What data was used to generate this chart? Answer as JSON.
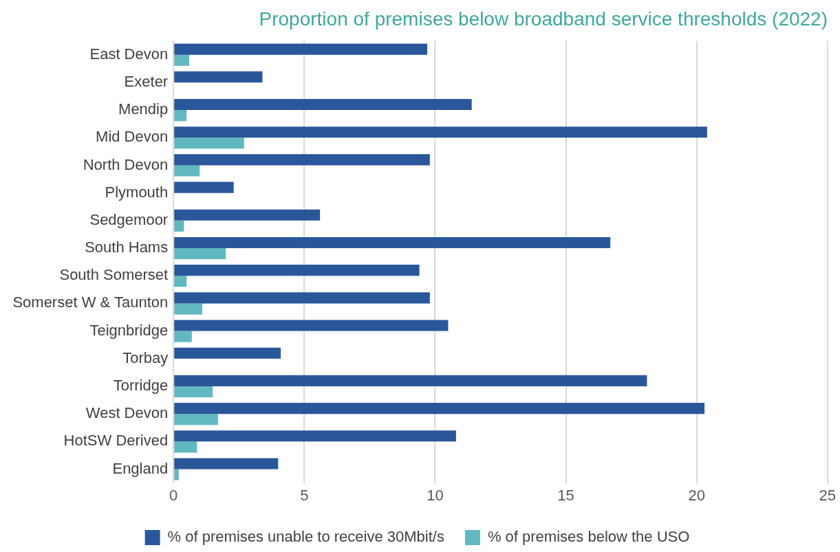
{
  "chart_data": {
    "type": "bar",
    "orientation": "horizontal",
    "title": "Proportion of premises below broadband service thresholds (2022)",
    "categories": [
      "East Devon",
      "Exeter",
      "Mendip",
      "Mid Devon",
      "North Devon",
      "Plymouth",
      "Sedgemoor",
      "South Hams",
      "South Somerset",
      "Somerset W & Taunton",
      "Teignbridge",
      "Torbay",
      "Torridge",
      "West Devon",
      "HotSW Derived",
      "England"
    ],
    "series": [
      {
        "name": "% of premises unable to receive 30Mbit/s",
        "color": "#2a579a",
        "values": [
          9.7,
          3.4,
          11.4,
          20.4,
          9.8,
          2.3,
          5.6,
          16.7,
          9.4,
          9.8,
          10.5,
          4.1,
          18.1,
          20.3,
          10.8,
          4.0
        ]
      },
      {
        "name": "% of premises below the USO",
        "color": "#62b8c1",
        "values": [
          0.6,
          null,
          0.5,
          2.7,
          1.0,
          null,
          0.4,
          2.0,
          0.5,
          1.1,
          0.7,
          null,
          1.5,
          1.7,
          0.9,
          0.2
        ]
      }
    ],
    "xlim": [
      0,
      25
    ],
    "xticks": [
      0,
      5,
      10,
      15,
      20,
      25
    ],
    "grid": "x",
    "legend": "bottom"
  }
}
